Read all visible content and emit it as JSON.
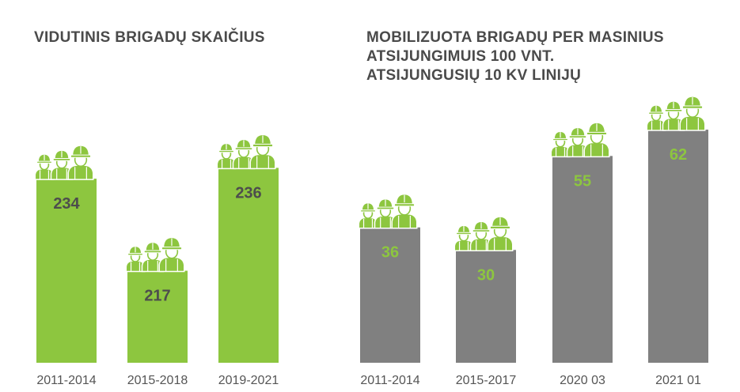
{
  "chart_data": [
    {
      "type": "bar",
      "title_lines": [
        "VIDUTINIS BRIGADŲ SKAIČIUS"
      ],
      "categories": [
        "2011-2014",
        "2015-2018",
        "2019-2021"
      ],
      "values": [
        234,
        217,
        236
      ],
      "ylim": [
        200,
        240
      ],
      "grid": false,
      "legend": "none",
      "bar_color": "#8dc63f",
      "label_color": "#4d4d4d",
      "icon": "worker-helmet-group-icon"
    },
    {
      "type": "bar",
      "title_lines": [
        "MOBILIZUOTA BRIGADŲ PER MASINIUS",
        "ATSIJUNGIMUIS 100 VNT.",
        "ATSIJUNGUSIŲ 10 KV LINIJŲ"
      ],
      "categories": [
        "2011-2014",
        "2015-2017",
        "2020 03",
        "2021 01"
      ],
      "values": [
        36,
        30,
        55,
        62
      ],
      "ylim": [
        0,
        66
      ],
      "grid": false,
      "legend": "none",
      "bar_color": "#808080",
      "label_color": "#8dc63f",
      "icon": "worker-helmet-group-icon"
    }
  ]
}
